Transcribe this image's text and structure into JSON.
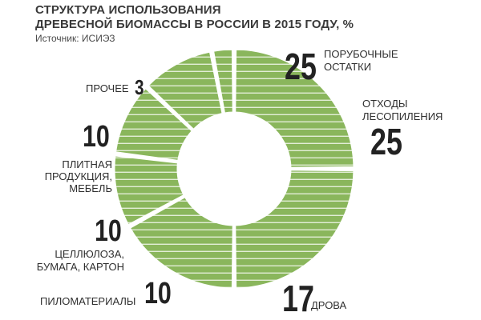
{
  "title_line1": "СТРУКТУРА ИСПОЛЬЗОВАНИЯ",
  "title_line2": "ДРЕВЕСНОЙ БИОМАССЫ В РОССИИ В 2015 ГОДУ, %",
  "source": "Источник: ИСИЭЗ",
  "colors": {
    "fill": "#8ab65c",
    "stripe": "#ffffff",
    "gap": "#ffffff"
  },
  "chart_data": {
    "type": "pie",
    "title": "СТРУКТУРА ИСПОЛЬЗОВАНИЯ ДРЕВЕСНОЙ БИОМАССЫ В РОССИИ В 2015 ГОДУ, %",
    "slices": [
      {
        "label": "ПОРУБОЧНЫЕ ОСТАТКИ",
        "value": 25
      },
      {
        "label": "ОТХОДЫ ЛЕСОПИЛЕНИЯ",
        "value": 25
      },
      {
        "label": "ДРОВА",
        "value": 17
      },
      {
        "label": "ПИЛОМАТЕРИАЛЫ",
        "value": 10
      },
      {
        "label": "ЦЕЛЛЮЛОЗА, БУМАГА, КАРТОН",
        "value": 10
      },
      {
        "label": "ПЛИТНАЯ ПРОДУКЦИЯ, МЕБЕЛЬ",
        "value": 10
      },
      {
        "label": "ПРОЧЕЕ",
        "value": 3
      }
    ],
    "labels": {
      "s0": {
        "num": "25",
        "line1": "ПОРУБОЧНЫЕ",
        "line2": "ОСТАТКИ"
      },
      "s1": {
        "num": "25",
        "line1": "ОТХОДЫ",
        "line2": "ЛЕСОПИЛЕНИЯ"
      },
      "s2": {
        "num": "17",
        "line1": "ДРОВА"
      },
      "s3": {
        "num": "10",
        "line1": "ПИЛОМАТЕРИАЛЫ"
      },
      "s4": {
        "num": "10",
        "line1": "ЦЕЛЛЮЛОЗА,",
        "line2": "БУМАГА, КАРТОН"
      },
      "s5": {
        "num": "10",
        "line1": "ПЛИТНАЯ",
        "line2": "ПРОДУКЦИЯ,",
        "line3": "МЕБЕЛЬ"
      },
      "s6": {
        "num": "3",
        "line1": "ПРОЧЕЕ"
      }
    }
  }
}
